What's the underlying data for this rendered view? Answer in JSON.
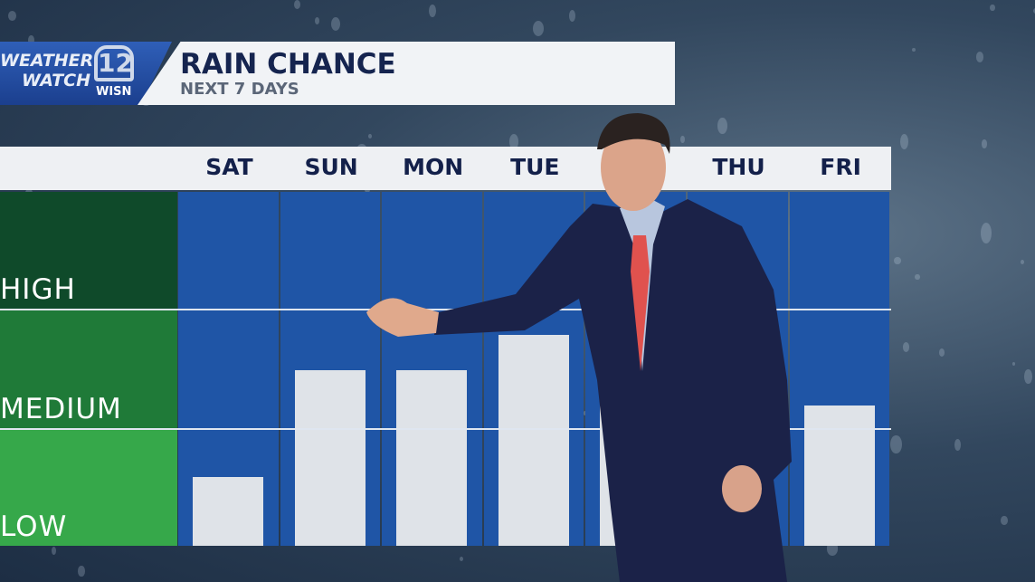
{
  "banner": {
    "logo_text": "WEATHER WATCH",
    "logo_number": "12",
    "logo_station": "WISN",
    "title": "RAIN CHANCE",
    "subtitle": "NEXT 7 DAYS"
  },
  "colors": {
    "banner_blue": "#1f4ea6",
    "column_blue": "#1f55a6",
    "high_band": "#0f4a2a",
    "medium_band": "#1f7a38",
    "low_band": "#36a84a",
    "bar": "#dfe3e8"
  },
  "chart_data": {
    "type": "bar",
    "title": "RAIN CHANCE",
    "subtitle": "NEXT 7 DAYS",
    "categories": [
      "SAT",
      "SUN",
      "MON",
      "TUE",
      "",
      "THU",
      "FRI"
    ],
    "y_scale_levels": [
      "LOW",
      "MEDIUM",
      "HIGH"
    ],
    "ylim": [
      0,
      3
    ],
    "values": [
      0.58,
      1.49,
      1.49,
      1.79,
      1.19,
      null,
      1.19
    ],
    "grid": true
  }
}
